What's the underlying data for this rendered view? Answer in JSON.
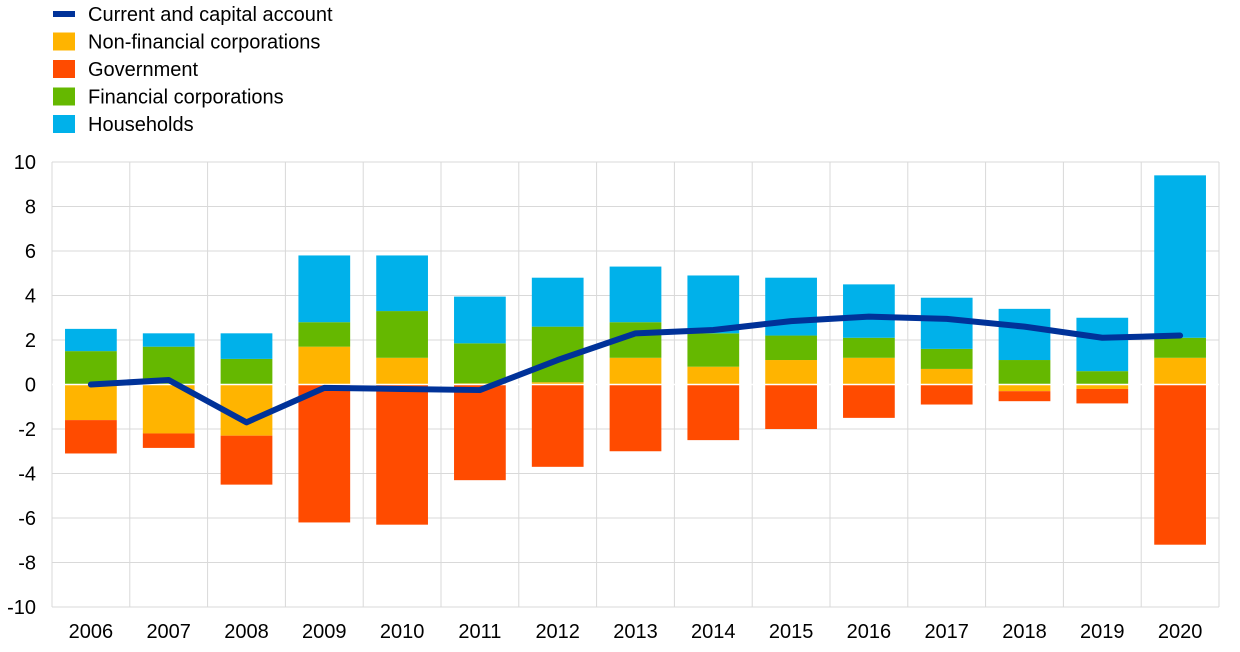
{
  "chart_data": {
    "type": "bar",
    "stacked": true,
    "categories": [
      "2006",
      "2007",
      "2008",
      "2009",
      "2010",
      "2011",
      "2012",
      "2013",
      "2014",
      "2015",
      "2016",
      "2017",
      "2018",
      "2019",
      "2020"
    ],
    "series": [
      {
        "name": "Non-financial corporations",
        "kind": "bar",
        "color": "#ffb400",
        "values": [
          -1.6,
          -2.2,
          -2.3,
          1.7,
          1.2,
          0.05,
          0.1,
          1.2,
          0.8,
          1.1,
          1.2,
          0.7,
          -0.3,
          -0.2,
          1.2
        ]
      },
      {
        "name": "Government",
        "kind": "bar",
        "color": "#ff4b00",
        "values": [
          -1.5,
          -0.65,
          -2.2,
          -6.2,
          -6.3,
          -4.3,
          -3.7,
          -3.0,
          -2.5,
          -2.0,
          -1.5,
          -0.9,
          -0.45,
          -0.65,
          -7.2
        ]
      },
      {
        "name": "Financial corporations",
        "kind": "bar",
        "color": "#65b800",
        "values": [
          1.5,
          1.7,
          1.15,
          1.1,
          2.1,
          1.8,
          2.5,
          1.6,
          1.5,
          1.1,
          0.9,
          0.9,
          1.1,
          0.6,
          0.9
        ]
      },
      {
        "name": "Households",
        "kind": "bar",
        "color": "#00b1ea",
        "values": [
          1.0,
          0.6,
          1.15,
          3.0,
          2.5,
          2.1,
          2.2,
          2.5,
          2.6,
          2.6,
          2.4,
          2.3,
          2.3,
          2.4,
          7.3
        ]
      },
      {
        "name": "Current and capital account",
        "kind": "line",
        "color": "#003299",
        "values": [
          0.0,
          0.2,
          -1.7,
          -0.15,
          -0.2,
          -0.25,
          1.1,
          2.3,
          2.45,
          2.85,
          3.05,
          2.95,
          2.6,
          2.1,
          2.2
        ]
      }
    ],
    "legend_order": [
      "Current and capital account",
      "Non-financial corporations",
      "Government",
      "Financial corporations",
      "Households"
    ],
    "ylim": [
      -10,
      10
    ],
    "yticks": [
      10,
      8,
      6,
      4,
      2,
      0,
      -2,
      -4,
      -6,
      -8,
      -10
    ],
    "grid": true,
    "legend_position": "top-left",
    "title": "",
    "xlabel": "",
    "ylabel": ""
  }
}
